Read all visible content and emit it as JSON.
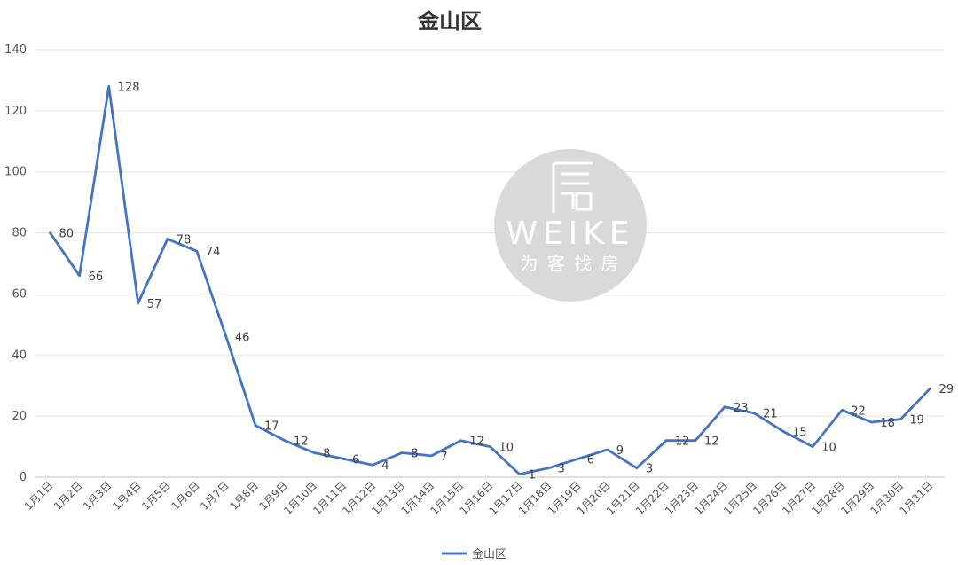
{
  "chart_data": {
    "type": "line",
    "title": "金山区",
    "xlabel": "",
    "ylabel": "",
    "ylim": [
      0,
      140
    ],
    "yticks": [
      0,
      20,
      40,
      60,
      80,
      100,
      120,
      140
    ],
    "grid": true,
    "legend_position": "bottom",
    "categories": [
      "1月1日",
      "1月2日",
      "1月3日",
      "1月4日",
      "1月5日",
      "1月6日",
      "1月7日",
      "1月8日",
      "1月9日",
      "1月10日",
      "1月11日",
      "1月12日",
      "1月13日",
      "1月14日",
      "1月15日",
      "1月16日",
      "1月17日",
      "1月18日",
      "1月19日",
      "1月20日",
      "1月21日",
      "1月22日",
      "1月23日",
      "1月24日",
      "1月25日",
      "1月26日",
      "1月27日",
      "1月28日",
      "1月29日",
      "1月30日",
      "1月31日"
    ],
    "series": [
      {
        "name": "金山区",
        "color": "#4472c4",
        "values": [
          80,
          66,
          128,
          57,
          78,
          74,
          46,
          17,
          12,
          8,
          6,
          4,
          8,
          7,
          12,
          10,
          1,
          3,
          6,
          9,
          3,
          12,
          12,
          23,
          21,
          15,
          10,
          22,
          18,
          19,
          29
        ]
      }
    ]
  },
  "watermark": {
    "brand": "WEIKE",
    "slogan": "为 客 找 房",
    "color": "#d9d9d9"
  }
}
